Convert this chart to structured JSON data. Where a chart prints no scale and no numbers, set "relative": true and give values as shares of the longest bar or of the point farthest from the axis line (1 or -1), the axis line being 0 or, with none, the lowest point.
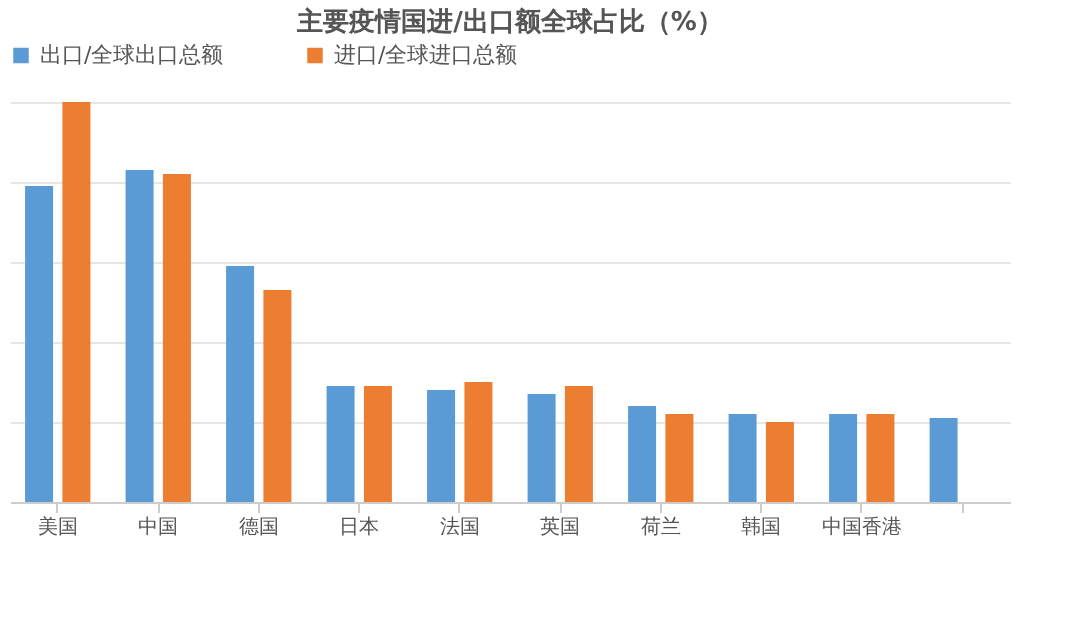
{
  "chart_data": {
    "type": "bar",
    "title": "主要疫情国进/出口额全球占比（%）",
    "relative": true,
    "grid": "y",
    "legend": "top",
    "categories": [
      "美国",
      "中国",
      "德国",
      "日本",
      "法国",
      "英国",
      "荷兰",
      "韩国",
      "中国香港",
      null
    ],
    "series": [
      {
        "name": "出口/全球出口总额",
        "color": "#5b9bd5",
        "values": [
          0.79,
          0.83,
          0.59,
          0.29,
          0.28,
          0.27,
          0.24,
          0.22,
          0.22,
          0.21
        ]
      },
      {
        "name": "进口/全球进口总额",
        "color": "#ed7d31",
        "values": [
          1,
          0.82,
          0.53,
          0.29,
          0.3,
          0.29,
          0.22,
          0.2,
          0.22,
          null
        ]
      }
    ]
  }
}
